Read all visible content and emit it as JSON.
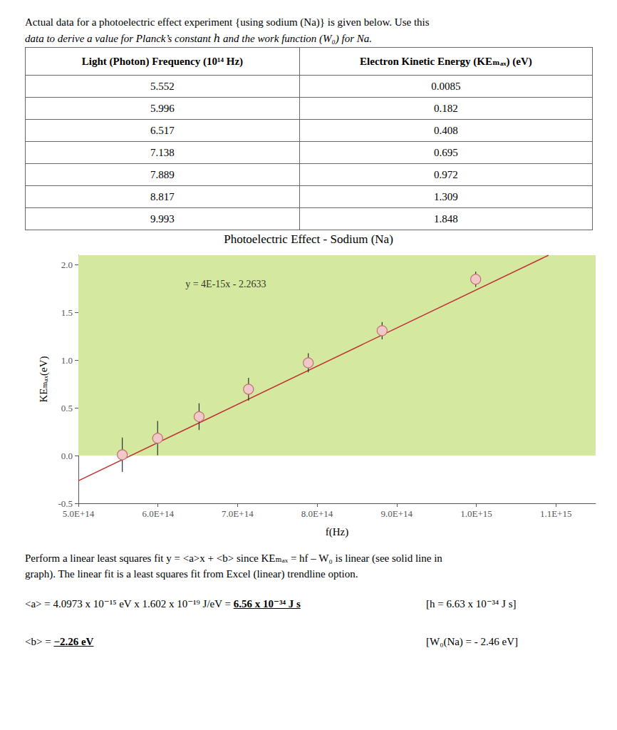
{
  "chart_data": {
    "type": "scatter",
    "title": "Photoelectric Effect - Sodium (Na)",
    "x_label": "f(Hz)",
    "y_label": "KEₘₐₓ(eV)",
    "x": [
      555200000000000.0,
      599600000000000.0,
      651700000000000.0,
      713800000000000.0,
      788900000000000.0,
      881700000000000.0,
      999300000000000.0
    ],
    "values": [
      0.0085,
      0.182,
      0.408,
      0.695,
      0.972,
      1.309,
      1.848
    ],
    "yerr": [
      0.18,
      0.18,
      0.14,
      0.12,
      0.1,
      0.09,
      0.08
    ],
    "color": "#f0c8c8",
    "edge_color": "#c07070",
    "error_color": "#303030",
    "marker": "circle",
    "fit": {
      "type": "line",
      "color": "#c03030",
      "line_style": "solid",
      "x": [
        500000000000000.0,
        1090825000000000.0
      ],
      "values": [
        -0.2633,
        2.1
      ]
    },
    "band": {
      "ylim": [
        0,
        2.1
      ],
      "color": "#d4e8a0"
    },
    "annotations": [
      {
        "text": "y = 4E-15x - 2.2633",
        "x": 630000000000000.0,
        "y": 1.8
      }
    ],
    "xlim": [
      500000000000000.0,
      1150000000000000.0
    ],
    "xticks": [
      {
        "value": 500000000000000.0,
        "label": "5.0E+14"
      },
      {
        "value": 600000000000000.0,
        "label": "6.0E+14"
      },
      {
        "value": 700000000000000.0,
        "label": "7.0E+14"
      },
      {
        "value": 800000000000000.0,
        "label": "8.0E+14"
      },
      {
        "value": 900000000000000.0,
        "label": "9.0E+14"
      },
      {
        "value": 1000000000000000.0,
        "label": "1.0E+15"
      },
      {
        "value": 1100000000000000.0,
        "label": "1.1E+15"
      }
    ],
    "ylim": [
      -0.5,
      2.1
    ],
    "yticks": [
      -0.5,
      {
        "value": 0,
        "label": "0.0"
      },
      0.5,
      {
        "value": 1,
        "label": "1.0"
      },
      1.5,
      {
        "value": 2,
        "label": "2.0"
      }
    ],
    "grid": false,
    "intro": [
      "Actual data for a photoelectric effect experiment {using sodium (Na)} is given below. Use this",
      "data to derive a value for Planck’s constant ℎ and the work function (W₀) for Na."
    ],
    "table": {
      "columns": [
        "Light (Photon) Frequency (10¹⁴ Hz)",
        "Electron Kinetic Energy (KEₘₐₓ) (eV)"
      ],
      "rows": [
        [
          "5.552",
          "0.0085"
        ],
        [
          "5.996",
          "0.182"
        ],
        [
          "6.517",
          "0.408"
        ],
        [
          "7.138",
          "0.695"
        ],
        [
          "7.889",
          "0.972"
        ],
        [
          "8.817",
          "1.309"
        ],
        [
          "9.993",
          "1.848"
        ]
      ]
    },
    "notes": [
      "Perform a linear least squares fit y = <a>x + <b> since KEₘₐₓ = hf – W₀ is linear (see solid line in",
      "graph). The linear fit is a least squares fit from Excel (linear) trendline option."
    ],
    "results": [
      {
        "text": "<a> = 4.0973 x 10⁻¹⁵ eV x 1.602 x 10⁻¹⁹ J/eV = ",
        "result": "6.56 x 10⁻³⁴ J s",
        "reference": "[h = 6.63 x 10⁻³⁴ J s]"
      },
      {
        "text": "<b> = ",
        "result": "−2.26 eV",
        "reference": "[W₀(Na) = - 2.46 eV]"
      }
    ]
  }
}
